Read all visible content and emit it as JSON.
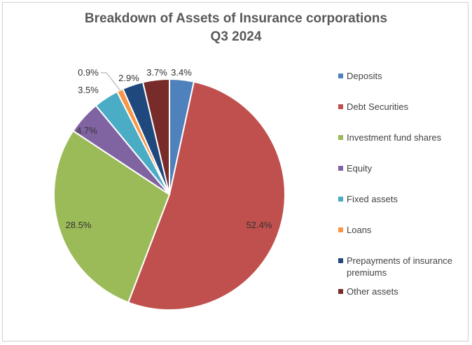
{
  "chart_data": {
    "type": "pie",
    "title": "Breakdown of Assets of Insurance corporations",
    "subtitle": "Q3 2024",
    "legend_position": "right",
    "slices": [
      {
        "name": "Deposits",
        "value": 3.4,
        "label": "3.4%",
        "color": "#4f81bd"
      },
      {
        "name": "Debt Securities",
        "value": 52.4,
        "label": "52.4%",
        "color": "#c0504d"
      },
      {
        "name": "Investment fund shares",
        "value": 28.5,
        "label": "28.5%",
        "color": "#9bbb59"
      },
      {
        "name": "Equity",
        "value": 4.7,
        "label": "4.7%",
        "color": "#8064a2"
      },
      {
        "name": "Fixed assets",
        "value": 3.5,
        "label": "3.5%",
        "color": "#4bacc6"
      },
      {
        "name": "Loans",
        "value": 0.9,
        "label": "0.9%",
        "color": "#f79646"
      },
      {
        "name": "Prepayments of insurance premiums",
        "value": 2.9,
        "label": "2.9%",
        "color": "#1f497d"
      },
      {
        "name": "Other assets",
        "value": 3.7,
        "label": "3.7%",
        "color": "#772c2a"
      }
    ]
  }
}
